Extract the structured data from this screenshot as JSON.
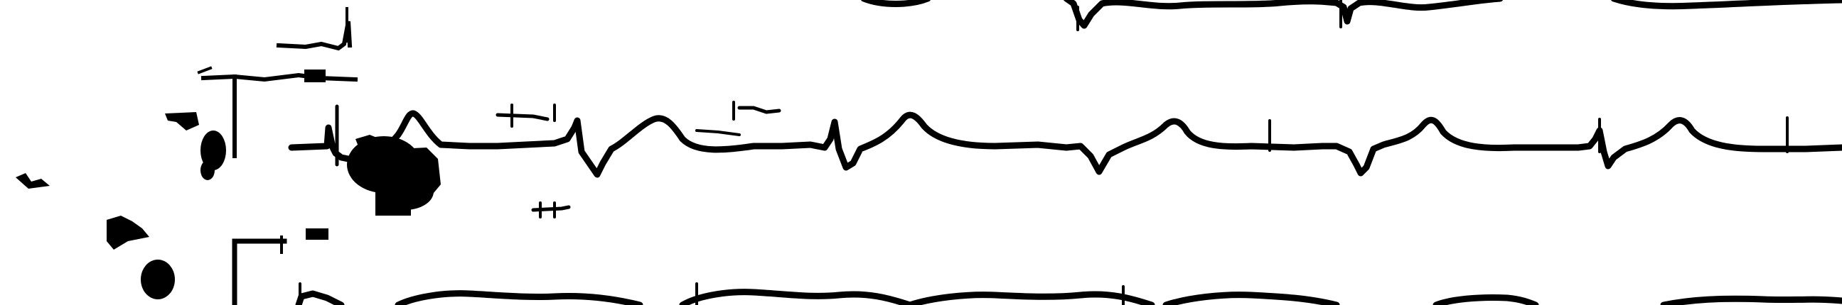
{
  "image": {
    "kind": "scanned ECG strip, binarized",
    "background_color": "#ffffff",
    "ink_color": "#000000",
    "visible_text": []
  },
  "traces": [
    {
      "name": "top-trace",
      "cropped_at_top": true
    },
    {
      "name": "middle-trace",
      "complete": true
    },
    {
      "name": "bottom-trace",
      "cropped_at_bottom": true
    }
  ],
  "calibration_pulses": [
    {
      "name": "upper-calibration-pulse"
    },
    {
      "name": "lower-calibration-pulse"
    }
  ]
}
